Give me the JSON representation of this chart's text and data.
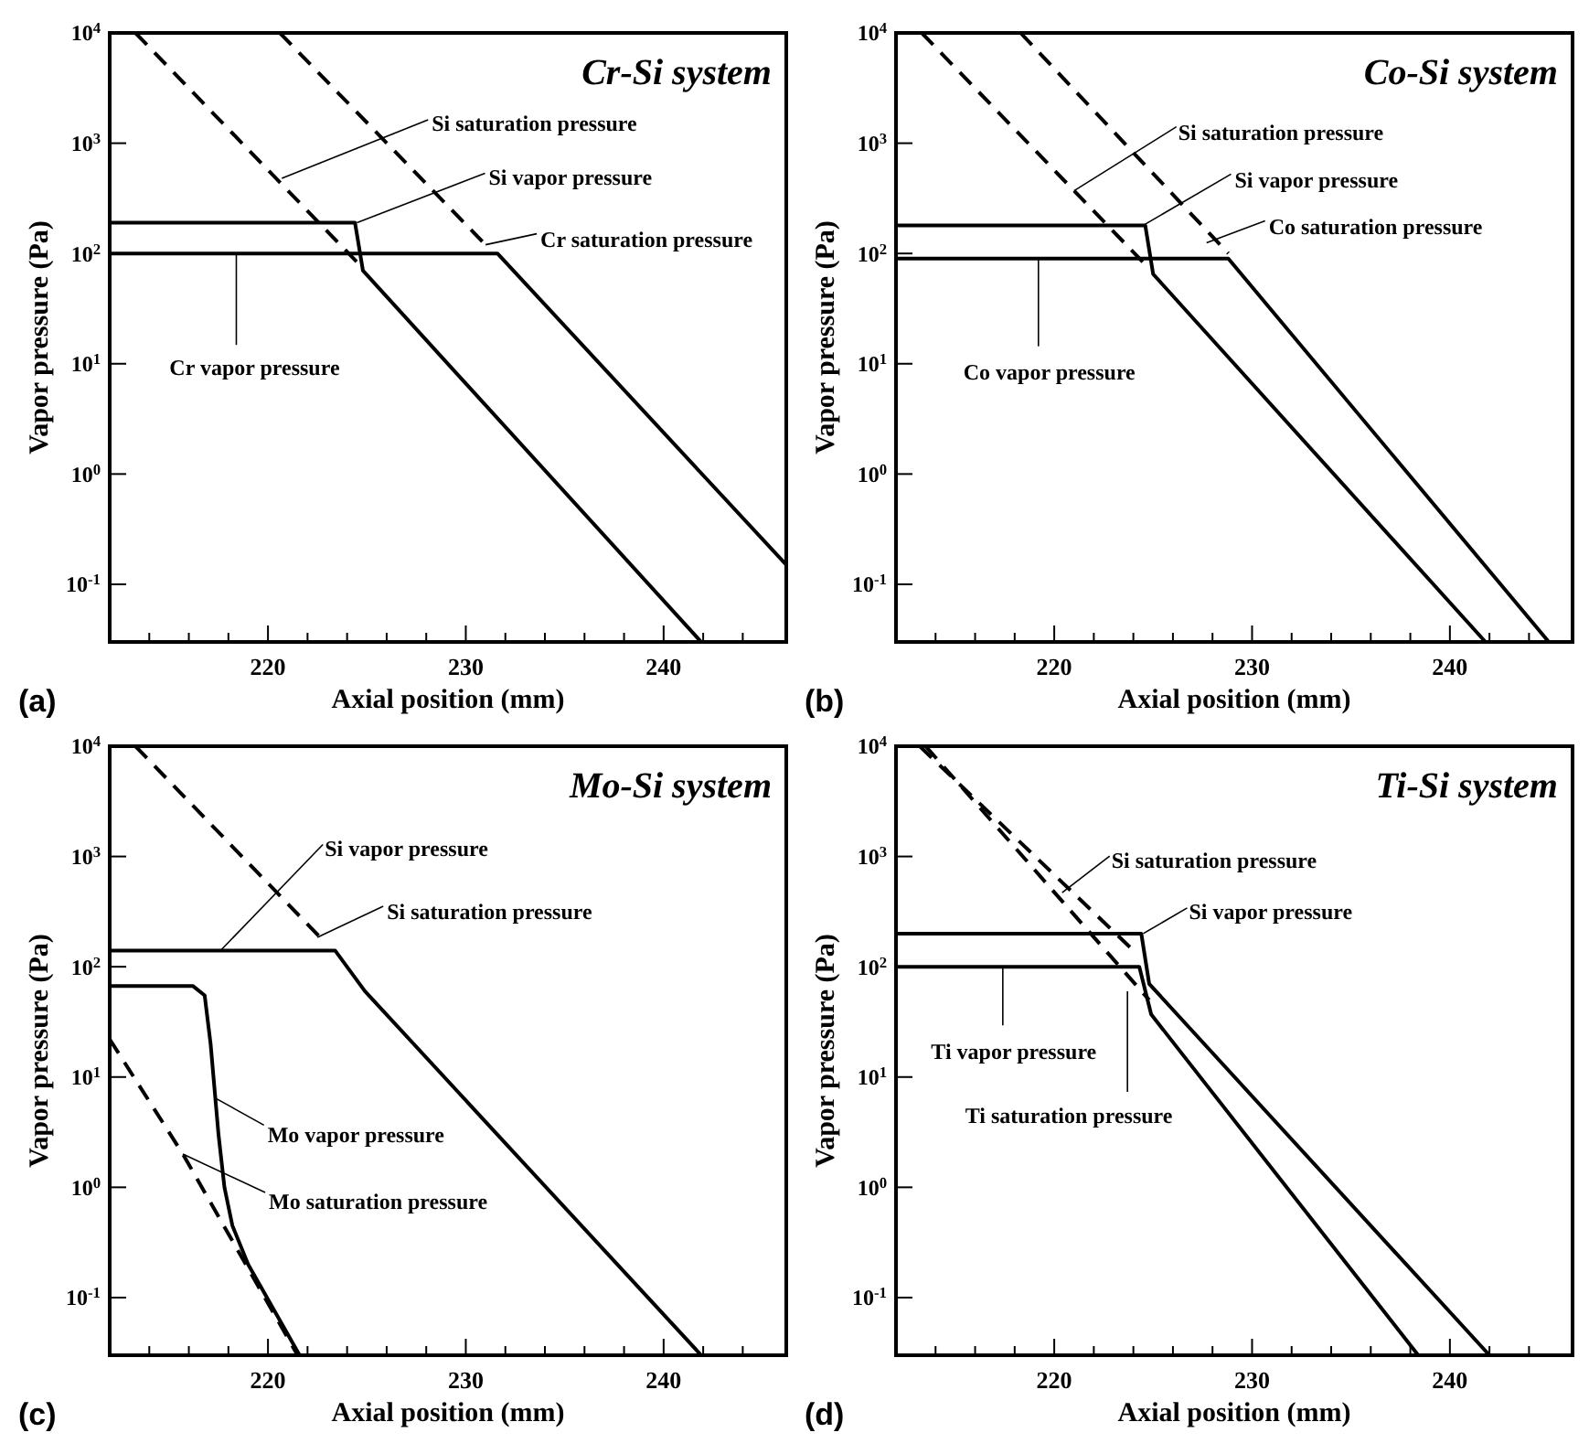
{
  "chart_data": [
    {
      "type": "line",
      "title": "Cr-Si system",
      "xlabel": "Axial position (mm)",
      "ylabel": "Vapor pressure (Pa)",
      "log": "y",
      "grid": false,
      "xlim": [
        212,
        246.2
      ],
      "ylim": [
        0.03,
        10000
      ],
      "xticks": [
        {
          "value": 214,
          "label": null
        },
        {
          "value": 216,
          "label": null
        },
        {
          "value": 218,
          "label": null
        },
        220,
        {
          "value": 222,
          "label": null
        },
        {
          "value": 224,
          "label": null
        },
        {
          "value": 226,
          "label": null
        },
        {
          "value": 228,
          "label": null
        },
        230,
        {
          "value": 232,
          "label": null
        },
        {
          "value": 234,
          "label": null
        },
        {
          "value": 236,
          "label": null
        },
        {
          "value": 238,
          "label": null
        },
        240,
        {
          "value": 242,
          "label": null
        },
        {
          "value": 244,
          "label": null
        }
      ],
      "yticks": [
        {
          "value": 0.1,
          "label": "10$^{-1}$"
        },
        {
          "value": 1,
          "label": "10$^{0}$"
        },
        {
          "value": 10,
          "label": "10$^{1}$"
        },
        {
          "value": 100,
          "label": "10$^{2}$"
        },
        {
          "value": 1000,
          "label": "10$^{3}$"
        },
        {
          "value": 10000,
          "label": "10$^{4}$"
        }
      ],
      "series": [
        {
          "color": "#000000",
          "line_style": "dashed",
          "x": [
            213.3,
            224.6
          ],
          "values": [
            10000,
            80
          ]
        },
        {
          "color": "#000000",
          "line_style": "dashed",
          "x": [
            220.6,
            231.2
          ],
          "values": [
            10000,
            110
          ]
        },
        {
          "color": "#000000",
          "line_style": "solid",
          "x": [
            212,
            224.4,
            224.8,
            241.9
          ],
          "values": [
            190,
            190,
            70,
            0.03
          ]
        },
        {
          "color": "#000000",
          "line_style": "solid",
          "x": [
            212,
            231.6,
            246.2
          ],
          "values": [
            100,
            100,
            0.15
          ]
        }
      ],
      "annotations": [
        {
          "text": "Si saturation pressure",
          "x": 220.7,
          "y": 480
        },
        {
          "text": "Si vapor pressure",
          "x": 224.5,
          "y": 190
        },
        {
          "text": "Cr saturation pressure",
          "x": 231,
          "y": 120
        },
        {
          "text": "Cr vapor pressure",
          "x": 218.4,
          "y": 100
        },
        "(a)"
      ]
    },
    {
      "type": "line",
      "title": "Co-Si system",
      "xlabel": "Axial position (mm)",
      "ylabel": "Vapor pressure (Pa)",
      "log": "y",
      "grid": false,
      "xlim": [
        212,
        246.2
      ],
      "ylim": [
        0.03,
        10000
      ],
      "xticks": [
        {
          "value": 214,
          "label": null
        },
        {
          "value": 216,
          "label": null
        },
        {
          "value": 218,
          "label": null
        },
        220,
        {
          "value": 222,
          "label": null
        },
        {
          "value": 224,
          "label": null
        },
        {
          "value": 226,
          "label": null
        },
        {
          "value": 228,
          "label": null
        },
        230,
        {
          "value": 232,
          "label": null
        },
        {
          "value": 234,
          "label": null
        },
        {
          "value": 236,
          "label": null
        },
        {
          "value": 238,
          "label": null
        },
        240,
        {
          "value": 242,
          "label": null
        },
        {
          "value": 244,
          "label": null
        }
      ],
      "yticks": [
        {
          "value": 0.1,
          "label": "10$^{-1}$"
        },
        {
          "value": 1,
          "label": "10$^{0}$"
        },
        {
          "value": 10,
          "label": "10$^{1}$"
        },
        {
          "value": 100,
          "label": "10$^{2}$"
        },
        {
          "value": 1000,
          "label": "10$^{3}$"
        },
        {
          "value": 10000,
          "label": "10$^{4}$"
        }
      ],
      "series": [
        {
          "color": "#000000",
          "line_style": "dashed",
          "x": [
            213.3,
            224.5
          ],
          "values": [
            10000,
            83
          ]
        },
        {
          "color": "#000000",
          "line_style": "dashed",
          "x": [
            218.3,
            228.8
          ],
          "values": [
            10000,
            100
          ]
        },
        {
          "color": "#000000",
          "line_style": "solid",
          "x": [
            212,
            224.6,
            225,
            241.8
          ],
          "values": [
            180,
            180,
            65,
            0.03
          ]
        },
        {
          "color": "#000000",
          "line_style": "solid",
          "x": [
            212,
            228.8,
            245
          ],
          "values": [
            90,
            90,
            0.03
          ]
        }
      ],
      "annotations": [
        {
          "text": "Si saturation pressure",
          "x": 221,
          "y": 370
        },
        {
          "text": "Si vapor pressure",
          "x": 224.5,
          "y": 180
        },
        {
          "text": "Co saturation pressure",
          "x": 227.7,
          "y": 125
        },
        {
          "text": "Co vapor pressure",
          "x": 219.2,
          "y": 90
        },
        "(b)"
      ]
    },
    {
      "type": "line",
      "title": "Mo-Si system",
      "xlabel": "Axial position (mm)",
      "ylabel": "Vapor pressure (Pa)",
      "log": "y",
      "grid": false,
      "xlim": [
        212,
        246.2
      ],
      "ylim": [
        0.03,
        10000
      ],
      "xticks": [
        {
          "value": 214,
          "label": null
        },
        {
          "value": 216,
          "label": null
        },
        {
          "value": 218,
          "label": null
        },
        220,
        {
          "value": 222,
          "label": null
        },
        {
          "value": 224,
          "label": null
        },
        {
          "value": 226,
          "label": null
        },
        {
          "value": 228,
          "label": null
        },
        230,
        {
          "value": 232,
          "label": null
        },
        {
          "value": 234,
          "label": null
        },
        {
          "value": 236,
          "label": null
        },
        {
          "value": 238,
          "label": null
        },
        240,
        {
          "value": 242,
          "label": null
        },
        {
          "value": 244,
          "label": null
        }
      ],
      "yticks": [
        {
          "value": 0.1,
          "label": "10$^{-1}$"
        },
        {
          "value": 1,
          "label": "10$^{0}$"
        },
        {
          "value": 10,
          "label": "10$^{1}$"
        },
        {
          "value": 100,
          "label": "10$^{2}$"
        },
        {
          "value": 1000,
          "label": "10$^{3}$"
        },
        {
          "value": 10000,
          "label": "10$^{4}$"
        }
      ],
      "series": [
        {
          "color": "#000000",
          "line_style": "dashed",
          "x": [
            213.3,
            222.7
          ],
          "values": [
            10000,
            180
          ]
        },
        {
          "color": "#000000",
          "line_style": "dashed",
          "x": [
            212,
            215.7,
            221.5
          ],
          "values": [
            22,
            2,
            0.03
          ]
        },
        {
          "color": "#000000",
          "line_style": "solid",
          "x": [
            212,
            223.4,
            224.9,
            241.9
          ],
          "values": [
            140,
            140,
            60,
            0.03
          ]
        },
        {
          "color": "#000000",
          "line_style": "solid",
          "x": [
            212,
            216.2,
            216.8,
            217.1,
            217.5,
            217.8,
            218.2,
            219,
            221.6
          ],
          "values": [
            67,
            67,
            55,
            20,
            3,
            1,
            0.45,
            0.2,
            0.03
          ]
        }
      ],
      "annotations": [
        {
          "text": "Si vapor pressure",
          "x": 217.6,
          "y": 140
        },
        {
          "text": "Si saturation pressure",
          "x": 222.5,
          "y": 185
        },
        {
          "text": "Mo vapor pressure",
          "x": 217.3,
          "y": 6.5
        },
        {
          "text": "Mo saturation pressure",
          "x": 215.7,
          "y": 2
        },
        "(c)"
      ]
    },
    {
      "type": "line",
      "title": "Ti-Si system",
      "xlabel": "Axial position (mm)",
      "ylabel": "Vapor pressure (Pa)",
      "log": "y",
      "grid": false,
      "xlim": [
        212,
        246.2
      ],
      "ylim": [
        0.03,
        10000
      ],
      "xticks": [
        {
          "value": 214,
          "label": null
        },
        {
          "value": 216,
          "label": null
        },
        {
          "value": 218,
          "label": null
        },
        220,
        {
          "value": 222,
          "label": null
        },
        {
          "value": 224,
          "label": null
        },
        {
          "value": 226,
          "label": null
        },
        {
          "value": 228,
          "label": null
        },
        230,
        {
          "value": 232,
          "label": null
        },
        {
          "value": 234,
          "label": null
        },
        {
          "value": 236,
          "label": null
        },
        {
          "value": 238,
          "label": null
        },
        240,
        {
          "value": 242,
          "label": null
        },
        {
          "value": 244,
          "label": null
        }
      ],
      "yticks": [
        {
          "value": 0.1,
          "label": "10$^{-1}$"
        },
        {
          "value": 1,
          "label": "10$^{0}$"
        },
        {
          "value": 10,
          "label": "10$^{1}$"
        },
        {
          "value": 100,
          "label": "10$^{2}$"
        },
        {
          "value": 1000,
          "label": "10$^{3}$"
        },
        {
          "value": 10000,
          "label": "10$^{4}$"
        }
      ],
      "series": [
        {
          "color": "#000000",
          "line_style": "dashed",
          "x": [
            213.2,
            224.2
          ],
          "values": [
            10000,
            130
          ]
        },
        {
          "color": "#000000",
          "line_style": "dashed",
          "x": [
            213.5,
            224.8
          ],
          "values": [
            10000,
            50
          ]
        },
        {
          "color": "#000000",
          "line_style": "solid",
          "x": [
            212,
            224.4,
            224.8,
            242
          ],
          "values": [
            200,
            200,
            70,
            0.03
          ]
        },
        {
          "color": "#000000",
          "line_style": "solid",
          "x": [
            212,
            224.3,
            224.9,
            238.4
          ],
          "values": [
            100,
            100,
            37,
            0.03
          ]
        }
      ],
      "annotations": [
        {
          "text": "Si saturation pressure",
          "x": 220.4,
          "y": 470
        },
        {
          "text": "Si vapor pressure",
          "x": 224.5,
          "y": 200
        },
        {
          "text": "Ti vapor pressure",
          "x": 217.4,
          "y": 100
        },
        {
          "text": "Ti saturation pressure",
          "x": 223.7,
          "y": 60
        },
        "(d)"
      ]
    }
  ]
}
